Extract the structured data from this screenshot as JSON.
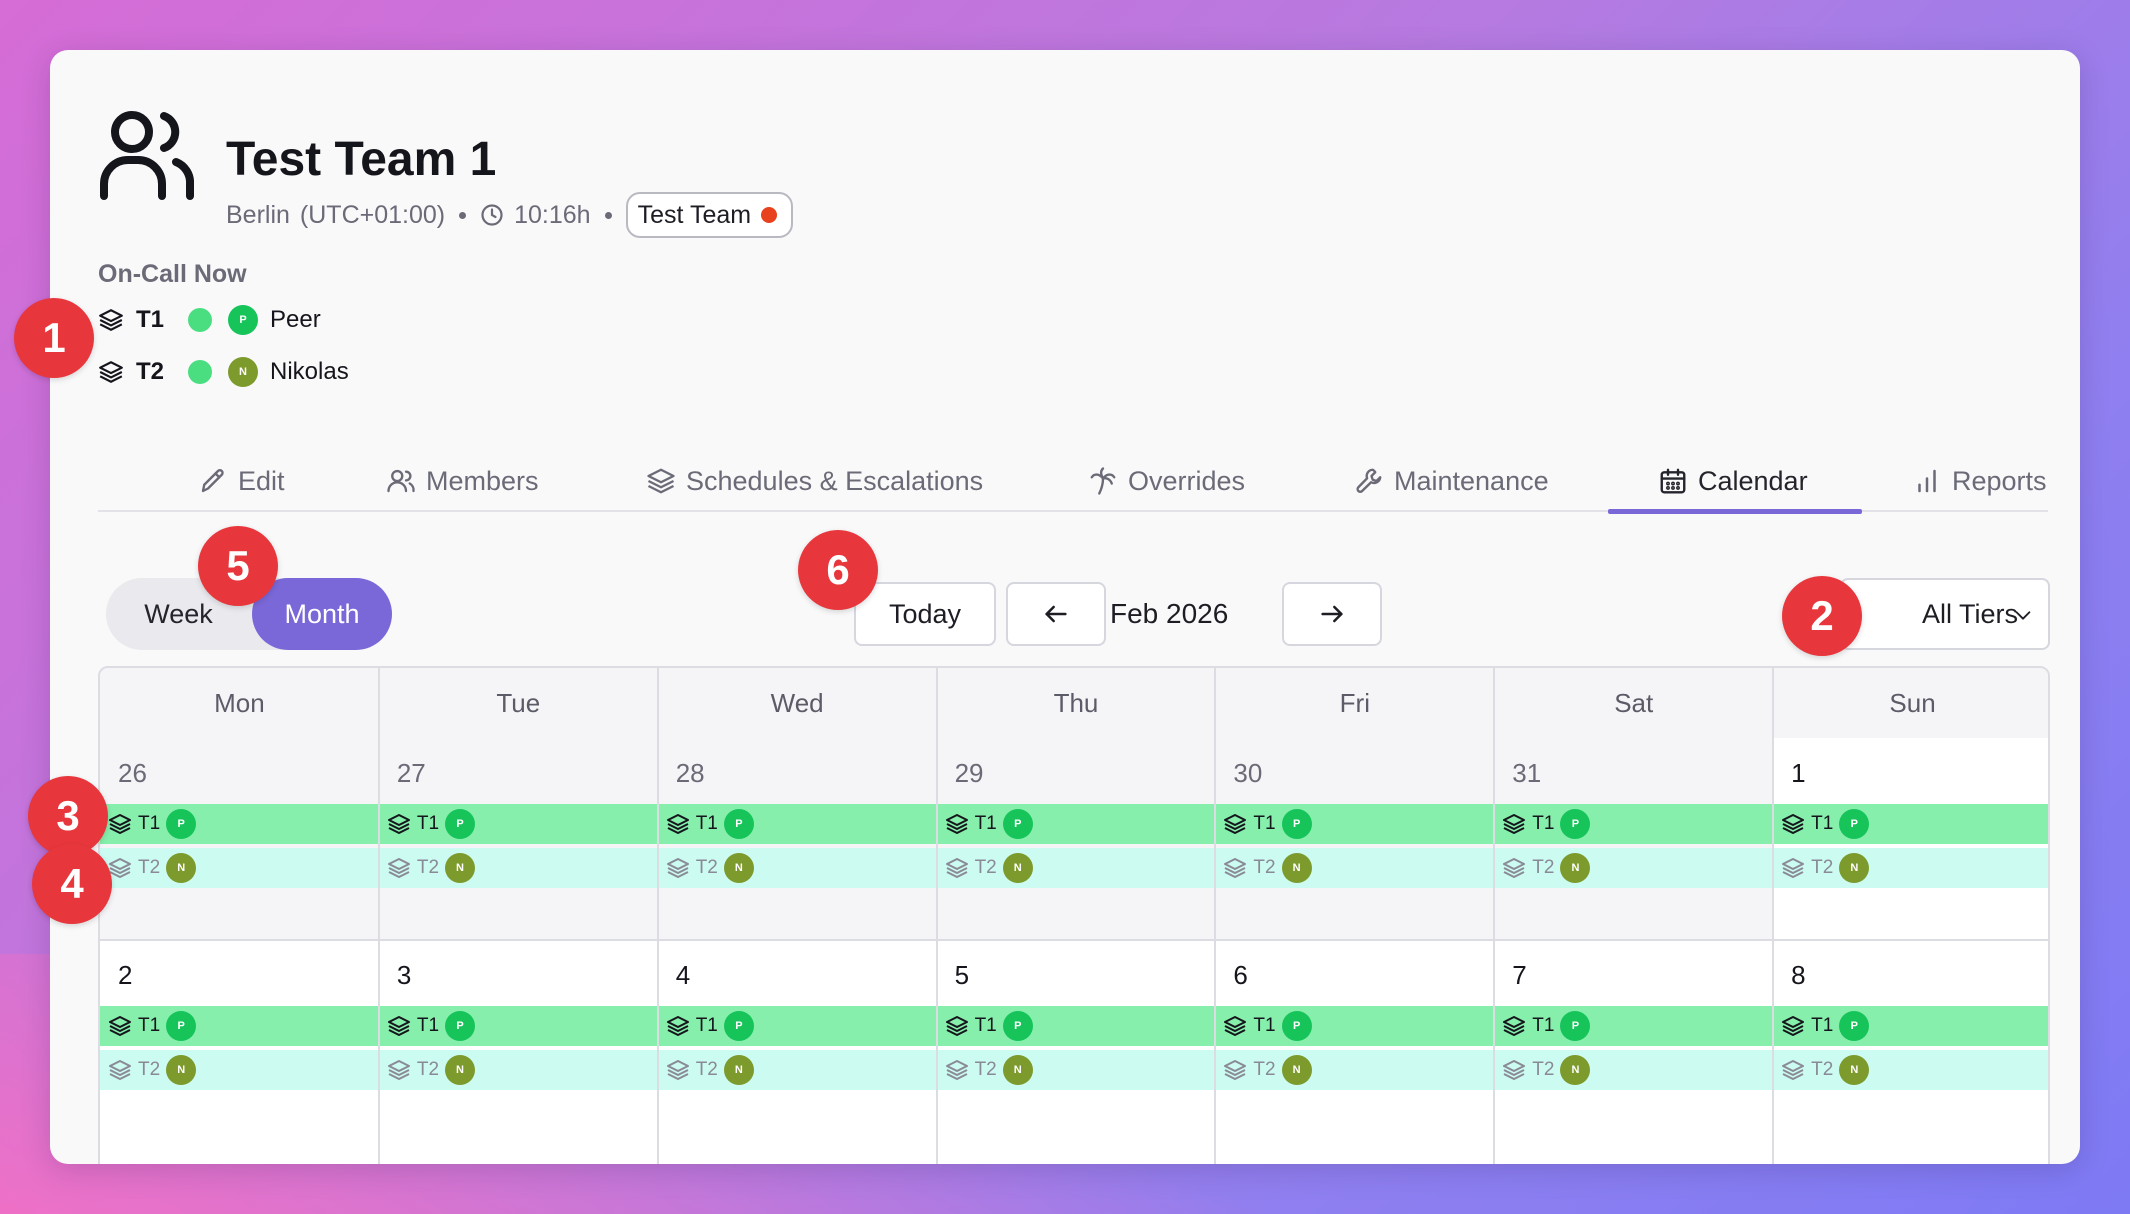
{
  "team": {
    "title": "Test Team 1",
    "city": "Berlin",
    "timezone": "(UTC+01:00)",
    "local_time": "10:16h",
    "badge": "Test Team"
  },
  "oncall": {
    "title": "On-Call Now",
    "rows": [
      {
        "tier": "T1",
        "avatar": "P",
        "name": "Peer"
      },
      {
        "tier": "T2",
        "avatar": "N",
        "name": "Nikolas"
      }
    ]
  },
  "tabs": [
    {
      "label": "Edit",
      "icon": "pencil-icon"
    },
    {
      "label": "Members",
      "icon": "users-icon"
    },
    {
      "label": "Schedules & Escalations",
      "icon": "layers-icon"
    },
    {
      "label": "Overrides",
      "icon": "palm-tree-icon"
    },
    {
      "label": "Maintenance",
      "icon": "wrench-icon"
    },
    {
      "label": "Calendar",
      "icon": "calendar-icon",
      "active": true
    },
    {
      "label": "Reports",
      "icon": "bar-chart-icon"
    }
  ],
  "controls": {
    "week_label": "Week",
    "month_label": "Month",
    "selected_view": "Month",
    "today_label": "Today",
    "current_month": "Feb 2026",
    "tier_filter": "All Tiers"
  },
  "calendar": {
    "weekdays": [
      "Mon",
      "Tue",
      "Wed",
      "Thu",
      "Fri",
      "Sat",
      "Sun"
    ],
    "weeks": [
      {
        "days": [
          "26",
          "27",
          "28",
          "29",
          "30",
          "31",
          "1"
        ],
        "outside": [
          true,
          true,
          true,
          true,
          true,
          true,
          false
        ]
      },
      {
        "days": [
          "2",
          "3",
          "4",
          "5",
          "6",
          "7",
          "8"
        ],
        "outside": [
          false,
          false,
          false,
          false,
          false,
          false,
          false
        ]
      }
    ],
    "shifts": [
      {
        "tier": "T1",
        "avatar": "P"
      },
      {
        "tier": "T2",
        "avatar": "N"
      }
    ]
  },
  "markers": [
    "1",
    "2",
    "3",
    "4",
    "5",
    "6"
  ],
  "colors": {
    "accent": "#7b68d8",
    "t1_band": "#86efac",
    "t2_band": "#ccfbf1",
    "online": "#4ade80",
    "marker": "#e8373c",
    "badge_dot": "#e8411e"
  }
}
